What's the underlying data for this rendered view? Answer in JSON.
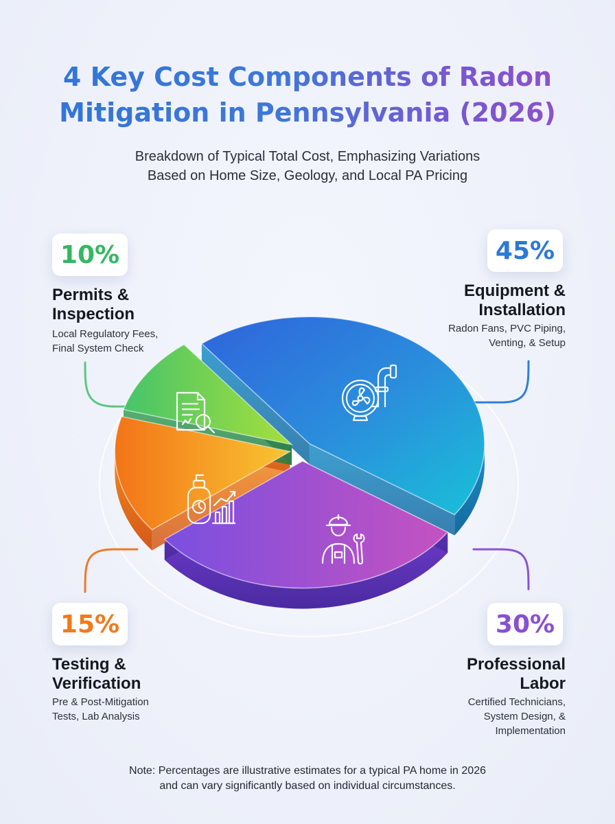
{
  "header": {
    "title_line1": "4 Key Cost Components of Radon",
    "title_line2": "Mitigation in Pennsylvania (2026)",
    "subtitle_line1": "Breakdown of Typical Total Cost, Emphasizing Variations",
    "subtitle_line2": "Based on Home Size, Geology, and Local PA Pricing"
  },
  "chart_data": {
    "type": "pie",
    "categories": [
      "Equipment & Installation",
      "Professional Labor",
      "Testing & Verification",
      "Permits & Inspection"
    ],
    "values": [
      45,
      30,
      15,
      10
    ],
    "unit": "%"
  },
  "segments": [
    {
      "key": "equipment",
      "percent": "45%",
      "label_line1": "Equipment &",
      "label_line2": "Installation",
      "desc_line1": "Radon Fans, PVC Piping,",
      "desc_line2": "Venting, & Setup",
      "desc_line3": "",
      "color": "#2a86d8",
      "icon": "fan-pipe-icon"
    },
    {
      "key": "labor",
      "percent": "30%",
      "label_line1": "Professional",
      "label_line2": "Labor",
      "desc_line1": "Certified Technicians,",
      "desc_line2": "System Design, &",
      "desc_line3": "Implementation",
      "color": "#8a4fd4",
      "icon": "worker-wrench-icon"
    },
    {
      "key": "testing",
      "percent": "15%",
      "label_line1": "Testing &",
      "label_line2": "Verification",
      "desc_line1": "Pre & Post-Mitigation",
      "desc_line2": "Tests, Lab Analysis",
      "desc_line3": "",
      "color": "#f0801c",
      "icon": "test-kit-chart-icon"
    },
    {
      "key": "permits",
      "percent": "10%",
      "label_line1": "Permits &",
      "label_line2": "Inspection",
      "desc_line1": "Local Regulatory Fees,",
      "desc_line2": "Final System Check",
      "desc_line3": "",
      "color": "#4cc060",
      "icon": "document-magnifier-icon"
    }
  ],
  "note": {
    "line1": "Note: Percentages are illustrative estimates for a typical PA home in 2026",
    "line2": "and can vary significantly based on individual circumstances."
  }
}
